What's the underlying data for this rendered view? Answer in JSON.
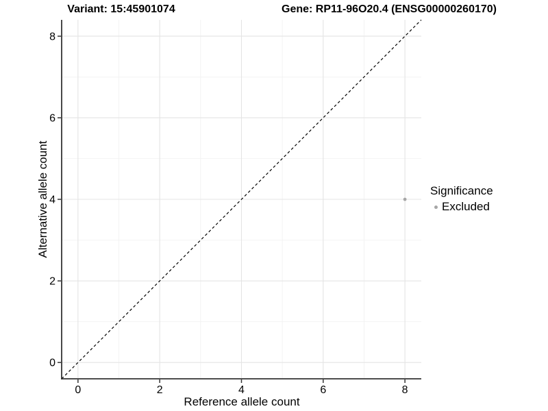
{
  "figure": {
    "title_left": "Variant: 15:45901074",
    "title_right": "Gene: RP11-96O20.4 (ENSG00000260170)"
  },
  "chart_data": {
    "type": "scatter",
    "xlabel": "Reference allele count",
    "ylabel": "Alternative allele count",
    "xlim": [
      -0.4,
      8.4
    ],
    "ylim": [
      -0.4,
      8.4
    ],
    "x_major_ticks": [
      0,
      2,
      4,
      6,
      8
    ],
    "y_major_ticks": [
      0,
      2,
      4,
      6,
      8
    ],
    "x_minor_ticks": [
      1,
      3,
      5,
      7
    ],
    "y_minor_ticks": [
      1,
      3,
      5,
      7
    ],
    "grid": true,
    "reference_line": {
      "type": "identity",
      "from": [
        -0.4,
        -0.4
      ],
      "to": [
        8.4,
        8.4
      ],
      "style": "dashed",
      "color": "#000000"
    },
    "series": [
      {
        "name": "Excluded",
        "color": "#a6a6a6",
        "points": [
          {
            "x": 8,
            "y": 4
          }
        ]
      }
    ],
    "legend": {
      "title": "Significance",
      "position": "right",
      "entries": [
        {
          "label": "Excluded",
          "color": "#a6a6a6"
        }
      ]
    },
    "colors": {
      "grid_major": "#e4e4e4",
      "grid_minor": "#f2f2f2",
      "axis_line": "#333333",
      "diagonal": "#000000"
    }
  }
}
